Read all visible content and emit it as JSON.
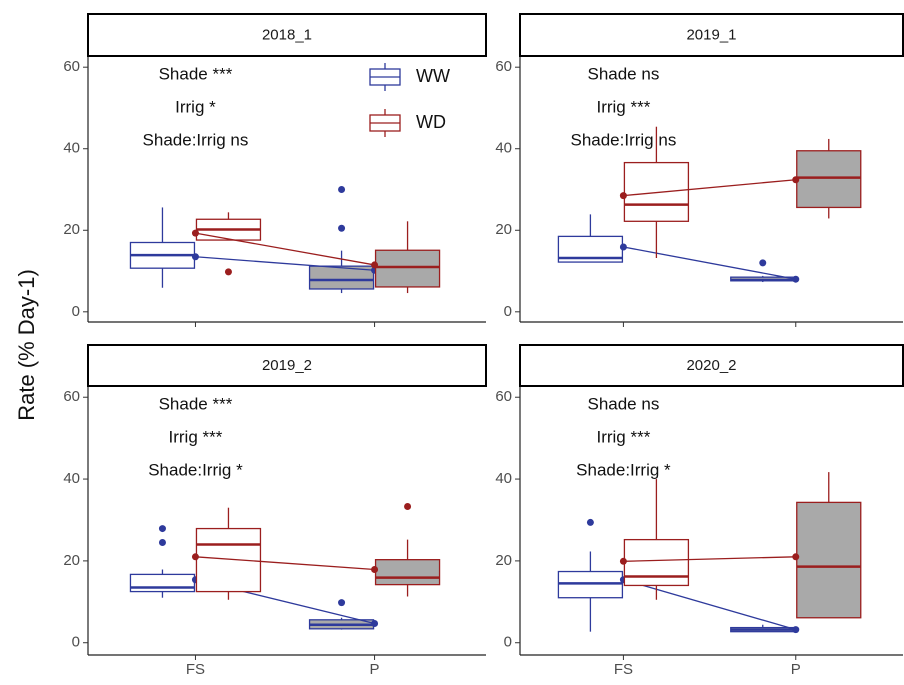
{
  "axis_title": "Rate (% Day-1)",
  "chart_data": [
    {
      "type": "box",
      "title": "2018_1",
      "annotations": [
        "Shade ***",
        "Irrig *",
        "Shade:Irrig ns"
      ],
      "ylim": [
        -2.5,
        62.5
      ],
      "yticks": [
        0,
        20,
        40,
        60
      ],
      "category_fills": [
        "#ffffff",
        "#a9a9a9"
      ],
      "legend": "top-right",
      "series": [
        {
          "name": "WW",
          "color": "#2e3a9c",
          "means": [
            13.5,
            10.2
          ],
          "stats": [
            {
              "min": 5.9,
              "q1": 10.7,
              "median": 13.9,
              "q3": 17,
              "max": 25.6,
              "outliers": []
            },
            {
              "min": 4.6,
              "q1": 5.6,
              "median": 7.8,
              "q3": 11.2,
              "max": 15,
              "outliers": [
                20.5,
                30
              ]
            }
          ]
        },
        {
          "name": "WD",
          "color": "#9b1e1e",
          "means": [
            19.3,
            11.5
          ],
          "stats": [
            {
              "min": 17.6,
              "q1": 17.6,
              "median": 20.2,
              "q3": 22.7,
              "max": 24.4,
              "outliers": [
                9.8
              ]
            },
            {
              "min": 4.6,
              "q1": 6.1,
              "median": 11,
              "q3": 15.1,
              "max": 22.2,
              "outliers": []
            }
          ]
        }
      ]
    },
    {
      "type": "box",
      "title": "2019_1",
      "annotations": [
        "Shade ns",
        "Irrig ***",
        "Shade:Irrig ns"
      ],
      "ylim": [
        -2.5,
        62.5
      ],
      "yticks": [
        0,
        20,
        40,
        60
      ],
      "category_fills": [
        "#ffffff",
        "#a9a9a9"
      ],
      "series": [
        {
          "color": "#2e3a9c",
          "means": [
            15.9,
            8
          ],
          "stats": [
            {
              "min": 12.2,
              "q1": 12.2,
              "median": 13.2,
              "q3": 18.5,
              "max": 23.9,
              "outliers": []
            },
            {
              "min": 7.3,
              "q1": 7.6,
              "median": 7.8,
              "q3": 8.5,
              "max": 8.8,
              "outliers": [
                12
              ]
            }
          ]
        },
        {
          "color": "#9b1e1e",
          "means": [
            28.5,
            32.4
          ],
          "stats": [
            {
              "min": 13.2,
              "q1": 22.2,
              "median": 26.3,
              "q3": 36.6,
              "max": 45.4,
              "outliers": []
            },
            {
              "min": 22.9,
              "q1": 25.6,
              "median": 32.9,
              "q3": 39.5,
              "max": 42.4,
              "outliers": []
            }
          ]
        }
      ]
    },
    {
      "type": "box",
      "title": "2019_2",
      "annotations": [
        "Shade ***",
        "Irrig ***",
        "Shade:Irrig *"
      ],
      "ylim": [
        -3,
        62.5
      ],
      "yticks": [
        0,
        20,
        40,
        60
      ],
      "category_fills": [
        "#ffffff",
        "#a9a9a9"
      ],
      "categories": [
        "FS",
        "P"
      ],
      "series": [
        {
          "color": "#2e3a9c",
          "means": [
            15.4,
            4.7
          ],
          "stats": [
            {
              "min": 11,
              "q1": 12.5,
              "median": 13.5,
              "q3": 16.7,
              "max": 17.9,
              "outliers": [
                24.5,
                27.9
              ]
            },
            {
              "min": 3.2,
              "q1": 3.4,
              "median": 4.4,
              "q3": 5.6,
              "max": 6.1,
              "outliers": [
                9.8
              ]
            }
          ]
        },
        {
          "color": "#9b1e1e",
          "means": [
            21,
            17.9
          ],
          "stats": [
            {
              "min": 10.5,
              "q1": 12.5,
              "median": 24,
              "q3": 27.9,
              "max": 33,
              "outliers": []
            },
            {
              "min": 11.3,
              "q1": 14.2,
              "median": 15.9,
              "q3": 20.3,
              "max": 25.2,
              "outliers": [
                33.3
              ]
            }
          ]
        }
      ]
    },
    {
      "type": "box",
      "title": "2020_2",
      "annotations": [
        "Shade ns",
        "Irrig ***",
        "Shade:Irrig *"
      ],
      "ylim": [
        -3,
        62.5
      ],
      "yticks": [
        0,
        20,
        40,
        60
      ],
      "category_fills": [
        "#ffffff",
        "#a9a9a9"
      ],
      "categories": [
        "FS",
        "P"
      ],
      "series": [
        {
          "color": "#2e3a9c",
          "means": [
            15.4,
            3.2
          ],
          "stats": [
            {
              "min": 2.7,
              "q1": 11,
              "median": 14.5,
              "q3": 17.4,
              "max": 22.3,
              "outliers": [
                29.4
              ]
            },
            {
              "min": 2.7,
              "q1": 2.7,
              "median": 3.2,
              "q3": 3.7,
              "max": 4.4,
              "outliers": []
            }
          ]
        },
        {
          "color": "#9b1e1e",
          "means": [
            19.9,
            21
          ],
          "stats": [
            {
              "min": 10.5,
              "q1": 14,
              "median": 16.2,
              "q3": 25.2,
              "max": 40,
              "outliers": []
            },
            {
              "min": 6.1,
              "q1": 6.1,
              "median": 18.6,
              "q3": 34.3,
              "max": 41.7,
              "outliers": []
            }
          ]
        }
      ]
    }
  ]
}
